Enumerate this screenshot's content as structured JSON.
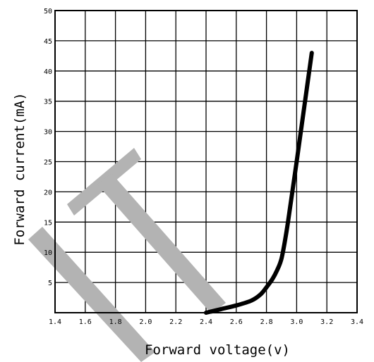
{
  "chart_data": {
    "type": "line",
    "title": "",
    "xlabel": "Forward voltage(v)",
    "ylabel": "Forward current(mA)",
    "xlim": [
      1.4,
      3.4
    ],
    "ylim": [
      0,
      50
    ],
    "x_ticks": [
      "1.4",
      "1.6",
      "1.8",
      "2.0",
      "2.2",
      "2.4",
      "2.6",
      "2.8",
      "3.0",
      "3.2",
      "3.4"
    ],
    "y_ticks": [
      "5",
      "10",
      "15",
      "20",
      "25",
      "30",
      "35",
      "40",
      "45",
      "50"
    ],
    "grid": true,
    "series": [
      {
        "x": [
          2.4,
          2.5,
          2.6,
          2.7,
          2.76,
          2.8,
          2.84,
          2.87,
          2.9,
          2.93,
          2.96,
          3.0,
          3.05,
          3.1
        ],
        "y": [
          0,
          0.6,
          1.2,
          2.0,
          3.0,
          4.2,
          5.6,
          7.0,
          9.0,
          13.0,
          18.0,
          25.0,
          34.0,
          43.0
        ]
      }
    ]
  },
  "watermark": {
    "color": "#b3b3b3"
  }
}
